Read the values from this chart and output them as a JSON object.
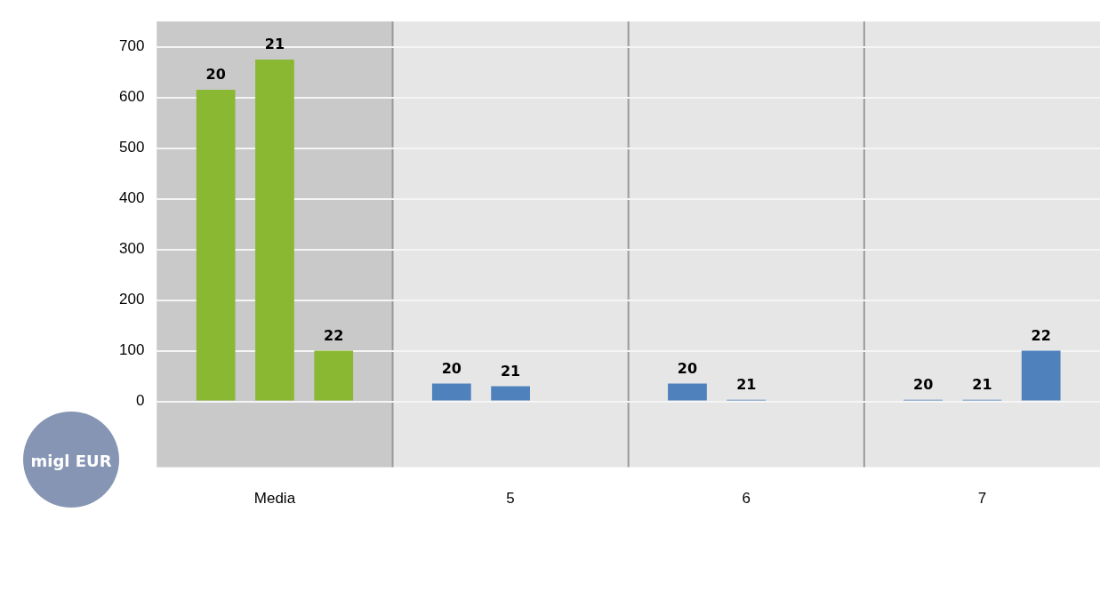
{
  "chart_data": {
    "type": "bar",
    "ylabel": "migl EUR",
    "categories": [
      "Media",
      "5",
      "6",
      "7"
    ],
    "series": [
      {
        "name": "20",
        "colors": [
          "#8ab833",
          "#4f81bd",
          "#4f81bd",
          "#4f81bd"
        ],
        "values": [
          615,
          35,
          35,
          3
        ]
      },
      {
        "name": "21",
        "colors": [
          "#8ab833",
          "#4f81bd",
          "#4f81bd",
          "#4f81bd"
        ],
        "values": [
          675,
          30,
          3,
          3
        ]
      },
      {
        "name": "22",
        "colors": [
          "#8ab833",
          "#4f81bd",
          "#4f81bd",
          "#4f81bd"
        ],
        "values": [
          100,
          null,
          null,
          100
        ]
      }
    ],
    "bands": [
      {
        "axis": "x",
        "from": "Media",
        "to": "Media",
        "color": "#c9c9c9"
      }
    ],
    "ylim": [
      -130,
      750
    ],
    "yticks": [
      0,
      100,
      200,
      300,
      400,
      500,
      600,
      700
    ],
    "grid": true,
    "legend": false
  }
}
